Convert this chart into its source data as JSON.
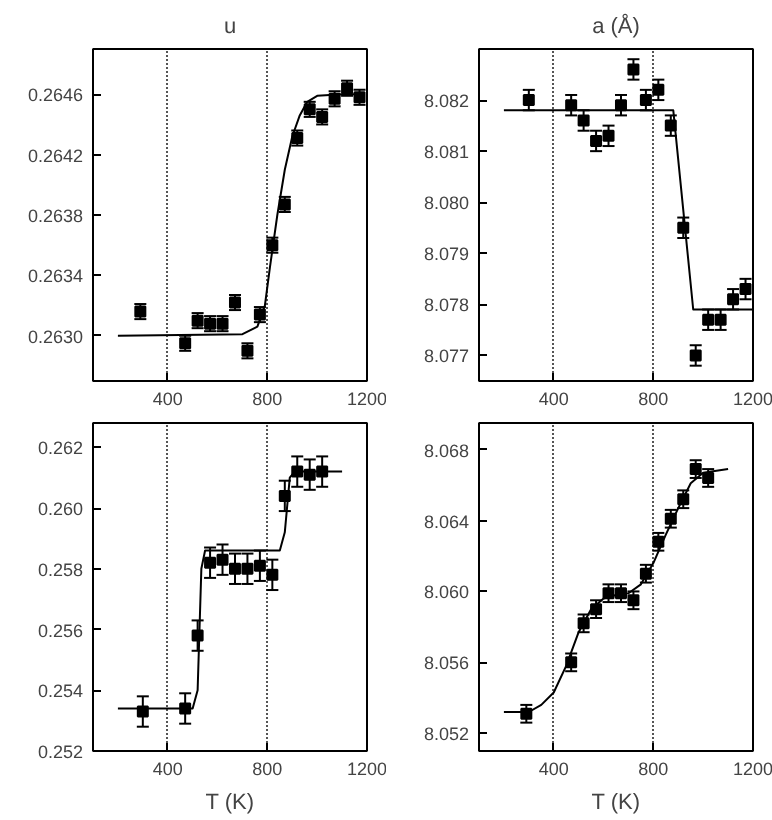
{
  "chart_data": [
    {
      "type": "scatter",
      "title": "u",
      "xlim": [
        100,
        1200
      ],
      "xticks": [
        400,
        800,
        1200
      ],
      "ylim": [
        0.2627,
        0.2649
      ],
      "yticks": [
        {
          "value": 0.263,
          "label": "0.2630"
        },
        0.2634,
        0.2638,
        0.2642,
        0.2646
      ],
      "grid": "x",
      "series": [
        {
          "marker": "square",
          "color": "#000000",
          "x": [
            290,
            470,
            520,
            570,
            620,
            670,
            720,
            770,
            820,
            870,
            920,
            970,
            1020,
            1070,
            1120,
            1170
          ],
          "values": [
            0.26316,
            0.26295,
            0.2631,
            0.26308,
            0.26308,
            0.26322,
            0.2629,
            0.26314,
            0.2636,
            0.26387,
            0.26431,
            0.2645,
            0.26445,
            0.26457,
            0.26464,
            0.26458
          ],
          "errors": [
            5e-05,
            5e-05,
            5e-05,
            5e-05,
            5e-05,
            5e-05,
            5e-05,
            5e-05,
            5e-05,
            5e-05,
            5e-05,
            5e-05,
            5e-05,
            5e-05,
            5e-05,
            5e-05
          ]
        },
        {
          "type": "line",
          "color": "#000000",
          "x": [
            200,
            700,
            760,
            790,
            810,
            840,
            870,
            900,
            930,
            960,
            1000,
            1100,
            1180
          ],
          "values": [
            0.263,
            0.26301,
            0.26306,
            0.2632,
            0.26345,
            0.2638,
            0.2641,
            0.26432,
            0.26446,
            0.26455,
            0.26459,
            0.2646,
            0.2646
          ]
        }
      ]
    },
    {
      "type": "scatter",
      "title": "a (Å)",
      "xlim": [
        100,
        1200
      ],
      "xticks": [
        400,
        800,
        1200
      ],
      "ylim": [
        8.0765,
        8.083
      ],
      "yticks": [
        8.077,
        8.078,
        8.079,
        {
          "value": 8.08,
          "label": "8.080"
        },
        8.081,
        8.082
      ],
      "grid": "x",
      "series": [
        {
          "marker": "square",
          "color": "#000000",
          "x": [
            300,
            470,
            520,
            570,
            620,
            670,
            720,
            770,
            820,
            870,
            920,
            970,
            1020,
            1070,
            1120,
            1170
          ],
          "values": [
            8.082,
            8.0819,
            8.0816,
            8.0812,
            8.0813,
            8.0819,
            8.0826,
            8.082,
            8.0822,
            8.0815,
            8.0795,
            8.077,
            8.0777,
            8.0777,
            8.0781,
            8.0783
          ],
          "errors": [
            0.0002,
            0.0002,
            0.0002,
            0.0002,
            0.0002,
            0.0002,
            0.0002,
            0.0002,
            0.0002,
            0.0002,
            0.0002,
            0.0002,
            0.0002,
            0.0002,
            0.0002,
            0.0002
          ]
        },
        {
          "type": "line",
          "color": "#000000",
          "x": [
            200,
            880,
            960,
            1200
          ],
          "values": [
            8.0818,
            8.0818,
            8.0779,
            8.0779
          ]
        }
      ]
    },
    {
      "type": "scatter",
      "xlabel": "T (K)",
      "xlim": [
        100,
        1200
      ],
      "xticks": [
        400,
        800,
        1200
      ],
      "ylim": [
        0.252,
        0.2628
      ],
      "yticks": [
        0.252,
        0.254,
        0.256,
        0.258,
        {
          "value": 0.26,
          "label": "0.260"
        },
        0.262
      ],
      "grid": "x",
      "series": [
        {
          "marker": "square",
          "color": "#000000",
          "x": [
            300,
            470,
            520,
            570,
            620,
            670,
            720,
            770,
            820,
            870,
            920,
            970,
            1020
          ],
          "values": [
            0.2533,
            0.2534,
            0.2558,
            0.2582,
            0.2583,
            0.258,
            0.258,
            0.2581,
            0.2578,
            0.2604,
            0.2612,
            0.2611,
            0.2612
          ],
          "errors": [
            0.0005,
            0.0005,
            0.0005,
            0.0005,
            0.0005,
            0.0005,
            0.0005,
            0.0005,
            0.0005,
            0.0005,
            0.0005,
            0.0005,
            0.0005
          ]
        },
        {
          "type": "line",
          "color": "#000000",
          "x": [
            200,
            500,
            520,
            535,
            550,
            850,
            870,
            890,
            910,
            1100
          ],
          "values": [
            0.2534,
            0.2534,
            0.254,
            0.258,
            0.2586,
            0.2586,
            0.2592,
            0.261,
            0.2612,
            0.2612
          ]
        }
      ]
    },
    {
      "type": "scatter",
      "xlabel": "T (K)",
      "xlim": [
        100,
        1200
      ],
      "xticks": [
        400,
        800,
        1200
      ],
      "ylim": [
        8.051,
        8.0695
      ],
      "yticks": [
        8.052,
        8.056,
        {
          "value": 8.06,
          "label": "8.060"
        },
        8.064,
        8.068
      ],
      "grid": "x",
      "series": [
        {
          "marker": "square",
          "color": "#000000",
          "x": [
            290,
            470,
            520,
            570,
            620,
            670,
            720,
            770,
            820,
            870,
            920,
            970,
            1020
          ],
          "values": [
            8.0531,
            8.056,
            8.0582,
            8.059,
            8.0599,
            8.0599,
            8.0595,
            8.061,
            8.0628,
            8.0641,
            8.0652,
            8.0669,
            8.0664
          ],
          "errors": [
            0.0005,
            0.0005,
            0.0005,
            0.0005,
            0.0005,
            0.0005,
            0.0005,
            0.0005,
            0.0005,
            0.0005,
            0.0005,
            0.0005,
            0.0005
          ]
        },
        {
          "type": "line",
          "color": "#000000",
          "x": [
            200,
            300,
            350,
            400,
            450,
            500,
            550,
            600,
            650,
            700,
            750,
            800,
            850,
            900,
            950,
            1000,
            1100
          ],
          "values": [
            8.0532,
            8.0532,
            8.0536,
            8.0543,
            8.0558,
            8.0577,
            8.059,
            8.0596,
            8.0598,
            8.0599,
            8.0604,
            8.0616,
            8.0632,
            8.0647,
            8.0661,
            8.0667,
            8.0669
          ]
        }
      ]
    }
  ]
}
